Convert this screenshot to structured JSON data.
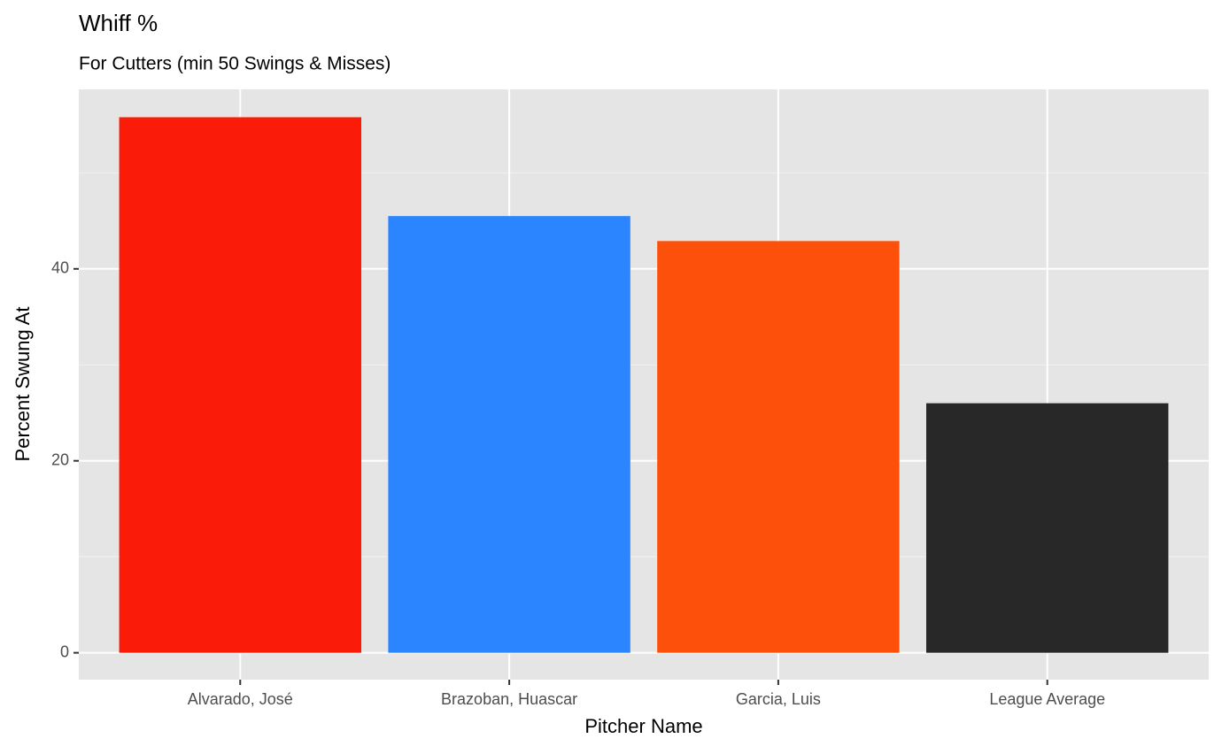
{
  "chart_data": {
    "type": "bar",
    "title": "Whiff %",
    "subtitle": "For Cutters (min 50 Swings & Misses)",
    "x_label": "Pitcher Name",
    "y_label": "Percent Swung At",
    "categories": [
      "Alvarado, José",
      "Brazoban, Huascar",
      "Garcia, Luis",
      "League Average"
    ],
    "values": [
      55.8,
      45.5,
      42.9,
      26.0
    ],
    "colors": [
      "#fb1b09",
      "#2b85ff",
      "#fd500a",
      "#282828"
    ],
    "ylim": [
      -2.8,
      58.7
    ],
    "yticks": [
      0,
      20,
      40
    ],
    "y_minor_grid": [
      10,
      30,
      50
    ],
    "grid": true
  }
}
